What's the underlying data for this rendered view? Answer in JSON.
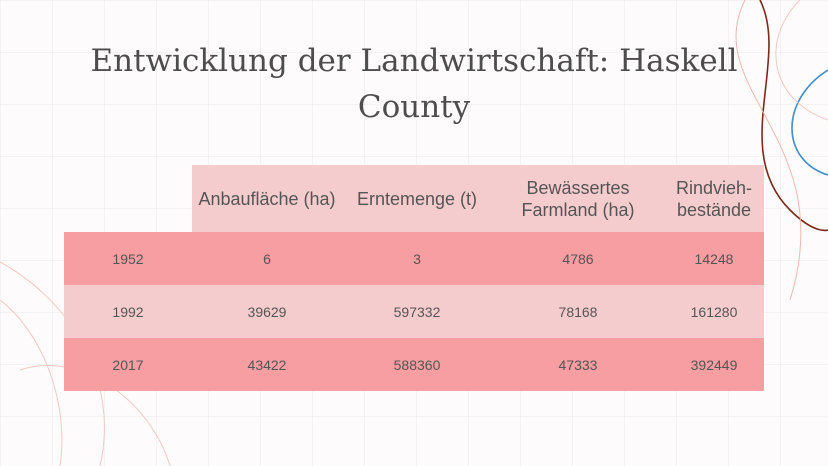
{
  "slide": {
    "title": "Entwicklung der Landwirtschaft: Haskell County"
  },
  "table": {
    "headers": [
      "",
      "Anbaufläche (ha)",
      "Erntemenge (t)",
      "Bewässertes Farmland (ha)",
      "Rindvieh-bestände"
    ],
    "rows": [
      [
        "1952",
        "6",
        "3",
        "4786",
        "14248"
      ],
      [
        "1992",
        "39629",
        "597332",
        "78168",
        "161280"
      ],
      [
        "2017",
        "43422",
        "588360",
        "47333",
        "392449"
      ]
    ]
  },
  "colors": {
    "header_bg": "#f5cccd",
    "row_dark": "#f79ea2",
    "row_light": "#f5cccd",
    "title": "#4d4d4d"
  }
}
